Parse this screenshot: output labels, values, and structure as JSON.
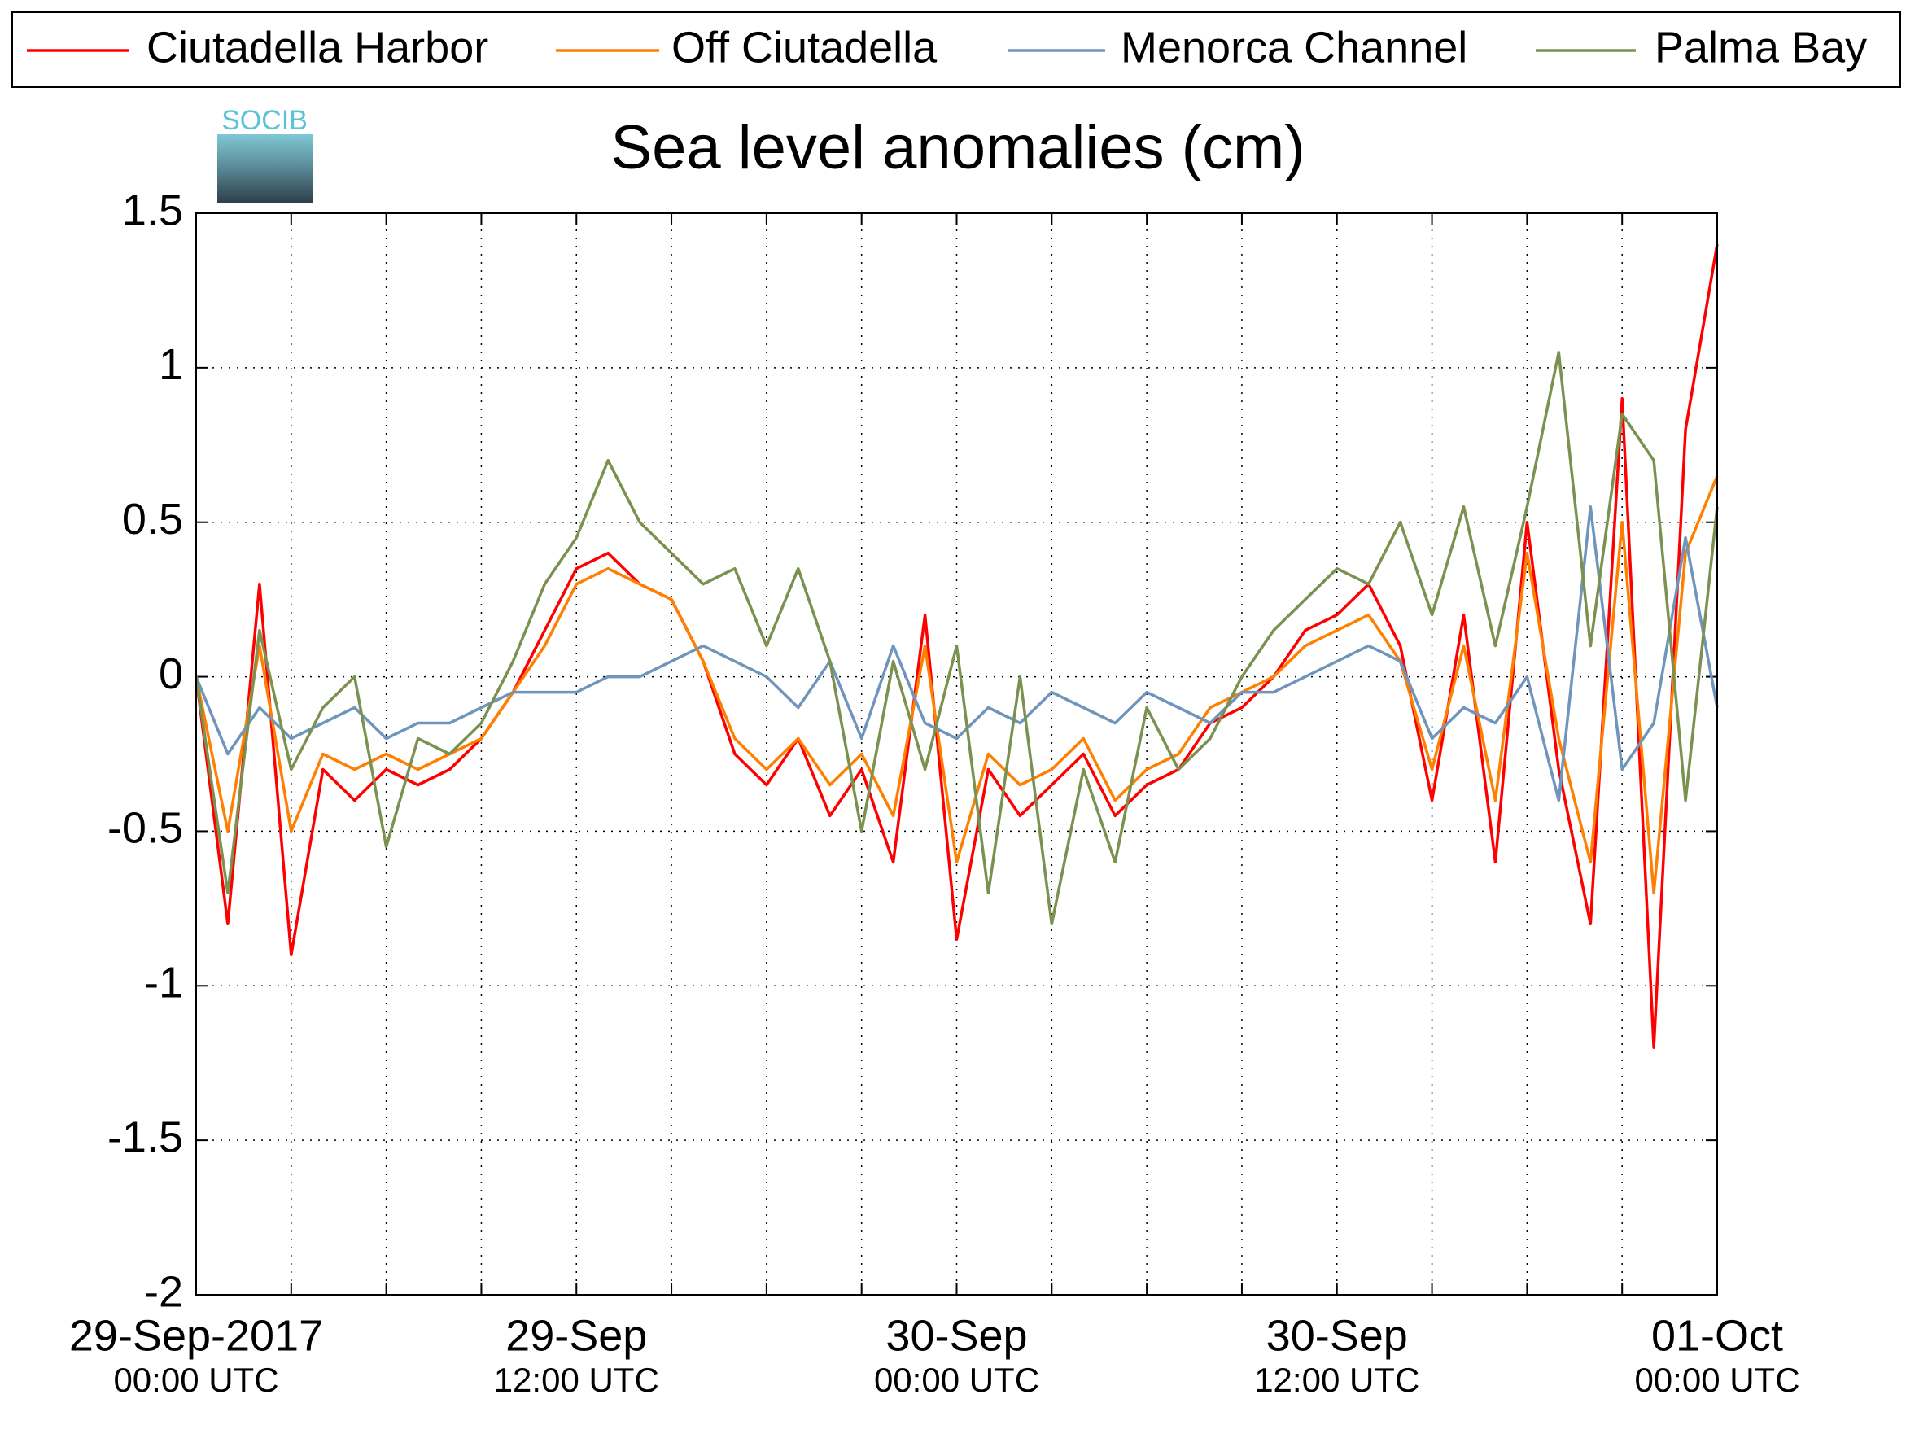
{
  "chart_data": {
    "type": "line",
    "title": "Sea level anomalies (cm)",
    "logo_text": "SOCIB",
    "x": [
      "2017-09-29T00:00",
      "2017-09-29T01:00",
      "2017-09-29T02:00",
      "2017-09-29T03:00",
      "2017-09-29T04:00",
      "2017-09-29T05:00",
      "2017-09-29T06:00",
      "2017-09-29T07:00",
      "2017-09-29T08:00",
      "2017-09-29T09:00",
      "2017-09-29T10:00",
      "2017-09-29T11:00",
      "2017-09-29T12:00",
      "2017-09-29T13:00",
      "2017-09-29T14:00",
      "2017-09-29T15:00",
      "2017-09-29T16:00",
      "2017-09-29T17:00",
      "2017-09-29T18:00",
      "2017-09-29T19:00",
      "2017-09-29T20:00",
      "2017-09-29T21:00",
      "2017-09-29T22:00",
      "2017-09-29T23:00",
      "2017-09-30T00:00",
      "2017-09-30T01:00",
      "2017-09-30T02:00",
      "2017-09-30T03:00",
      "2017-09-30T04:00",
      "2017-09-30T05:00",
      "2017-09-30T06:00",
      "2017-09-30T07:00",
      "2017-09-30T08:00",
      "2017-09-30T09:00",
      "2017-09-30T10:00",
      "2017-09-30T11:00",
      "2017-09-30T12:00",
      "2017-09-30T13:00",
      "2017-09-30T14:00",
      "2017-09-30T15:00",
      "2017-09-30T16:00",
      "2017-09-30T17:00",
      "2017-09-30T18:00",
      "2017-09-30T19:00",
      "2017-09-30T20:00",
      "2017-09-30T21:00",
      "2017-09-30T22:00",
      "2017-09-30T23:00",
      "2017-10-01T00:00"
    ],
    "series": [
      {
        "name": "Ciutadella Harbor",
        "color": "#ff0000",
        "values": [
          0,
          -0.8,
          0.3,
          -0.9,
          -0.3,
          -0.4,
          -0.3,
          -0.35,
          -0.3,
          -0.2,
          -0.05,
          0.15,
          0.35,
          0.4,
          0.3,
          0.25,
          0.05,
          -0.25,
          -0.35,
          -0.2,
          -0.45,
          -0.3,
          -0.6,
          0.2,
          -0.85,
          -0.3,
          -0.45,
          -0.35,
          -0.25,
          -0.45,
          -0.35,
          -0.3,
          -0.15,
          -0.1,
          0,
          0.15,
          0.2,
          0.3,
          0.1,
          -0.4,
          0.2,
          -0.6,
          0.5,
          -0.3,
          -0.8,
          0.9,
          -1.2,
          0.8,
          1.4
        ]
      },
      {
        "name": "Off Ciutadella",
        "color": "#ff8000",
        "values": [
          0,
          -0.5,
          0.1,
          -0.5,
          -0.25,
          -0.3,
          -0.25,
          -0.3,
          -0.25,
          -0.2,
          -0.05,
          0.1,
          0.3,
          0.35,
          0.3,
          0.25,
          0.05,
          -0.2,
          -0.3,
          -0.2,
          -0.35,
          -0.25,
          -0.45,
          0.1,
          -0.6,
          -0.25,
          -0.35,
          -0.3,
          -0.2,
          -0.4,
          -0.3,
          -0.25,
          -0.1,
          -0.05,
          0,
          0.1,
          0.15,
          0.2,
          0.05,
          -0.3,
          0.1,
          -0.4,
          0.4,
          -0.2,
          -0.6,
          0.5,
          -0.7,
          0.4,
          0.65
        ]
      },
      {
        "name": "Menorca Channel",
        "color": "#6f95bd",
        "values": [
          0,
          -0.25,
          -0.1,
          -0.2,
          -0.15,
          -0.1,
          -0.2,
          -0.15,
          -0.15,
          -0.1,
          -0.05,
          -0.05,
          -0.05,
          0,
          0,
          0.05,
          0.1,
          0.05,
          0,
          -0.1,
          0.05,
          -0.2,
          0.1,
          -0.15,
          -0.2,
          -0.1,
          -0.15,
          -0.05,
          -0.1,
          -0.15,
          -0.05,
          -0.1,
          -0.15,
          -0.05,
          -0.05,
          0,
          0.05,
          0.1,
          0.05,
          -0.2,
          -0.1,
          -0.15,
          0,
          -0.4,
          0.55,
          -0.3,
          -0.15,
          0.45,
          -0.1
        ]
      },
      {
        "name": "Palma Bay",
        "color": "#7a9150",
        "values": [
          0,
          -0.7,
          0.15,
          -0.3,
          -0.1,
          0,
          -0.55,
          -0.2,
          -0.25,
          -0.15,
          0.05,
          0.3,
          0.45,
          0.7,
          0.5,
          0.4,
          0.3,
          0.35,
          0.1,
          0.35,
          0.05,
          -0.5,
          0.05,
          -0.3,
          0.1,
          -0.7,
          0,
          -0.8,
          -0.3,
          -0.6,
          -0.1,
          -0.3,
          -0.2,
          0,
          0.15,
          0.25,
          0.35,
          0.3,
          0.5,
          0.2,
          0.55,
          0.1,
          0.55,
          1.05,
          0.1,
          0.85,
          0.7,
          -0.4,
          0.55
        ]
      }
    ],
    "xlim": [
      "2017-09-29T00:00",
      "2017-10-01T00:00"
    ],
    "xticks": [
      {
        "value": "2017-09-29T00:00",
        "label": "29-Sep-2017",
        "sublabel": "00:00 UTC"
      },
      {
        "value": "2017-09-29T12:00",
        "label": "29-Sep",
        "sublabel": "12:00 UTC"
      },
      {
        "value": "2017-09-30T00:00",
        "label": "30-Sep",
        "sublabel": "00:00 UTC"
      },
      {
        "value": "2017-09-30T12:00",
        "label": "30-Sep",
        "sublabel": "12:00 UTC"
      },
      {
        "value": "2017-10-01T00:00",
        "label": "01-Oct",
        "sublabel": "00:00 UTC"
      }
    ],
    "xminor": [
      "2017-09-29T03:00",
      "2017-09-29T06:00",
      "2017-09-29T09:00",
      "2017-09-29T15:00",
      "2017-09-29T18:00",
      "2017-09-29T21:00",
      "2017-09-30T03:00",
      "2017-09-30T06:00",
      "2017-09-30T09:00",
      "2017-09-30T15:00",
      "2017-09-30T18:00",
      "2017-09-30T21:00"
    ],
    "ylim": [
      -2,
      1.5
    ],
    "yticks": [
      -2,
      -1.5,
      -1,
      -0.5,
      0,
      0.5,
      1,
      1.5
    ],
    "grid": true
  }
}
